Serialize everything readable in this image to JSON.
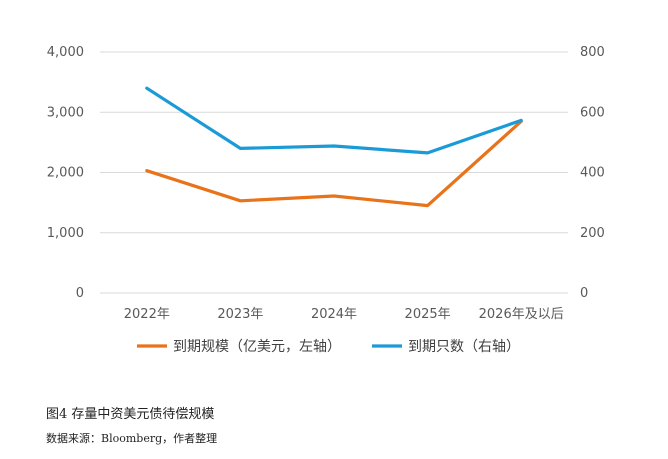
{
  "chart_data": {
    "type": "line",
    "title": "",
    "categories": [
      "2022年",
      "2023年",
      "2024年",
      "2025年",
      "2026年及以后"
    ],
    "y_left": {
      "ticks": [
        "4,000",
        "3,000",
        "2,000",
        "1,000",
        "0"
      ],
      "ylim": [
        0,
        4000
      ]
    },
    "y_right": {
      "ticks": [
        "800",
        "600",
        "400",
        "200",
        "0"
      ],
      "ylim": [
        0,
        800
      ]
    },
    "grid": true,
    "legend_position": "bottom",
    "series": [
      {
        "name": "到期规模（亿美元，左轴）",
        "axis": "left",
        "color": "#E8731A",
        "values": [
          2030,
          1530,
          1610,
          1450,
          2850
        ]
      },
      {
        "name": "到期只数（右轴）",
        "axis": "right",
        "color": "#1A9BD7",
        "values": [
          680,
          480,
          488,
          465,
          573
        ]
      }
    ]
  },
  "caption": "图4  存量中资美元债待偿规模",
  "source": "数据来源：Bloomberg，作者整理"
}
